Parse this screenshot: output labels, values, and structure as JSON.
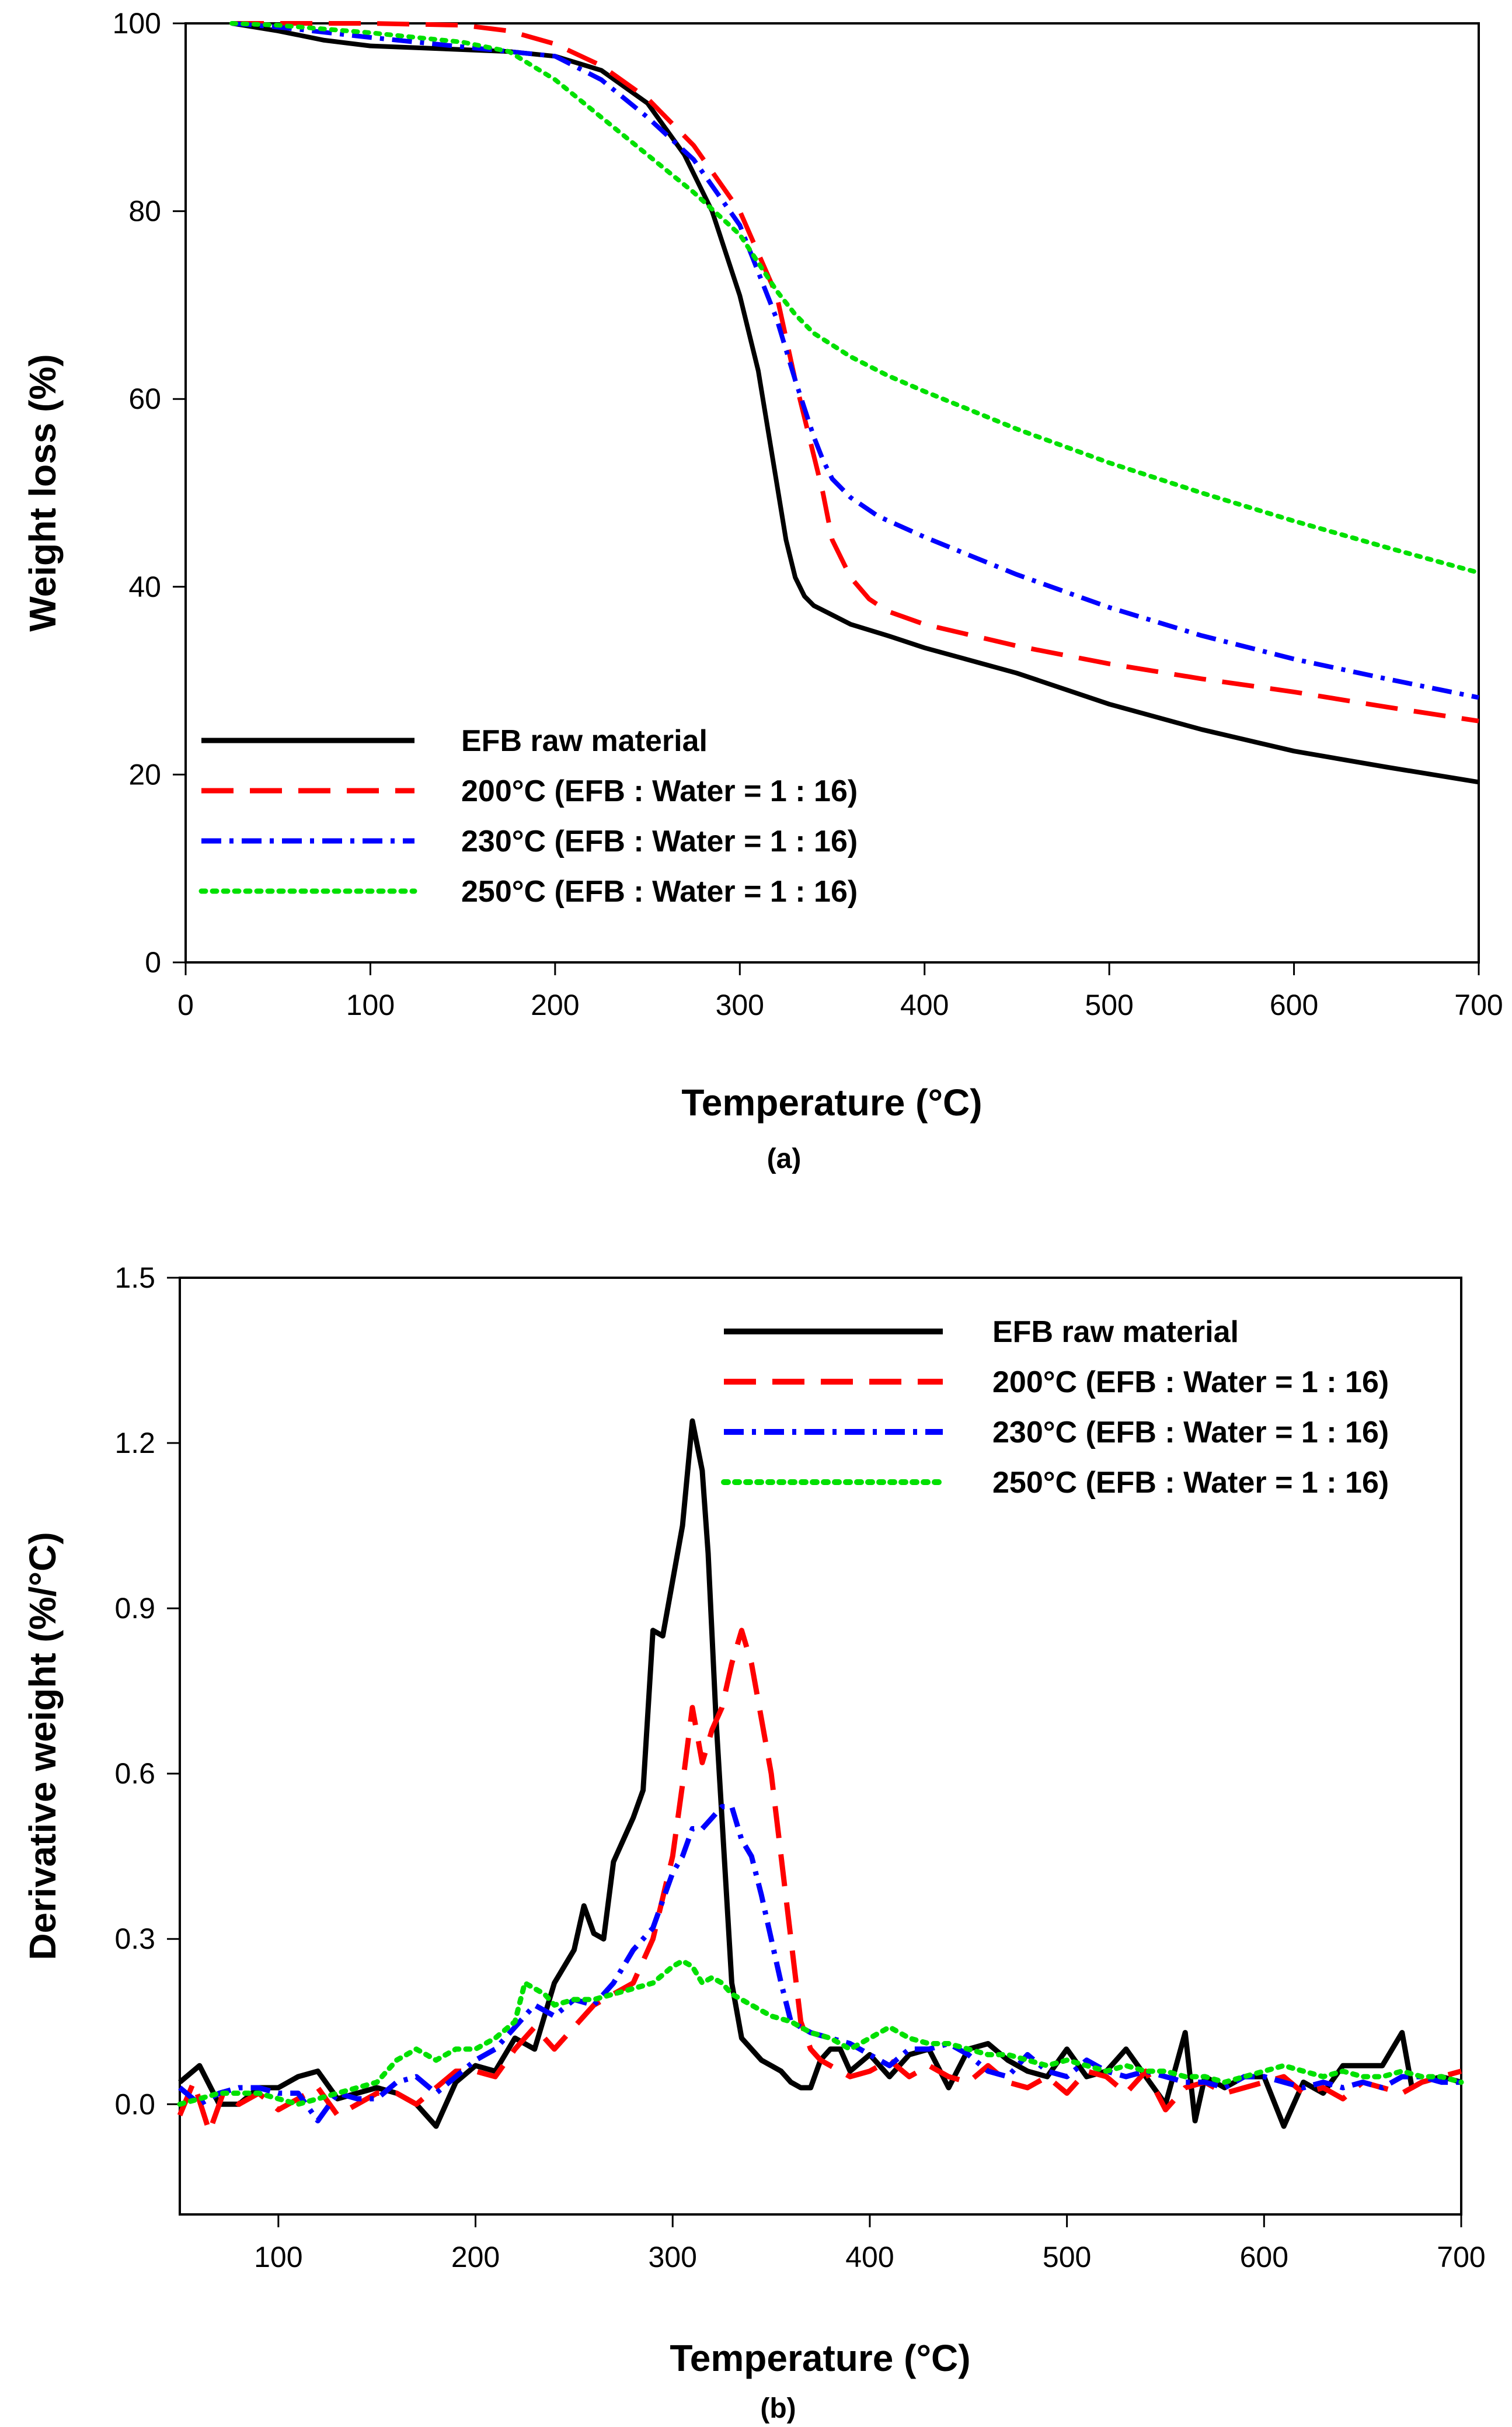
{
  "figure": {
    "panel_a_label": "(a)",
    "panel_b_label": "(b)"
  },
  "chart_data": [
    {
      "type": "line",
      "panel": "(a)",
      "title": "",
      "xlabel": "Temperature (°C)",
      "ylabel": "Weight loss (%)",
      "xlim": [
        0,
        700
      ],
      "ylim": [
        0,
        100
      ],
      "xticks": [
        0,
        100,
        200,
        300,
        400,
        500,
        600,
        700
      ],
      "yticks": [
        0,
        20,
        40,
        60,
        80,
        100
      ],
      "grid": false,
      "legend_position": "bottom-left",
      "series": [
        {
          "name": "EFB raw material",
          "color": "#000000",
          "style": "solid",
          "x": [
            25,
            50,
            75,
            100,
            125,
            150,
            175,
            200,
            225,
            250,
            270,
            285,
            300,
            310,
            320,
            325,
            330,
            335,
            340,
            350,
            360,
            380,
            400,
            450,
            500,
            550,
            600,
            650,
            700
          ],
          "y": [
            100,
            99.2,
            98.2,
            97.6,
            97.4,
            97.2,
            97.0,
            96.5,
            95.0,
            91.5,
            86.0,
            80.0,
            71.0,
            63.0,
            51.0,
            45.0,
            41.0,
            39.0,
            38.0,
            37.0,
            36.0,
            34.8,
            33.5,
            30.8,
            27.5,
            24.8,
            22.5,
            20.8,
            19.2
          ]
        },
        {
          "name": "200°C (EFB : Water = 1 : 16)",
          "color": "#ff0000",
          "style": "dashed",
          "x": [
            25,
            50,
            100,
            150,
            175,
            200,
            225,
            250,
            275,
            300,
            320,
            330,
            340,
            345,
            350,
            360,
            370,
            380,
            400,
            450,
            500,
            550,
            600,
            650,
            700
          ],
          "y": [
            100,
            100,
            100,
            99.8,
            99.2,
            97.8,
            95.5,
            92.0,
            87.0,
            80.0,
            71.0,
            62.0,
            54.0,
            50.0,
            45.0,
            41.0,
            38.7,
            37.4,
            36.0,
            33.7,
            31.8,
            30.2,
            28.8,
            27.2,
            25.7
          ]
        },
        {
          "name": "230°C (EFB : Water = 1 : 16)",
          "color": "#0000ff",
          "style": "dashdot",
          "x": [
            25,
            50,
            100,
            150,
            175,
            200,
            225,
            250,
            275,
            300,
            320,
            330,
            340,
            345,
            350,
            360,
            375,
            400,
            450,
            500,
            550,
            600,
            650,
            700
          ],
          "y": [
            100,
            99.6,
            98.5,
            97.5,
            97.0,
            96.5,
            94.0,
            90.0,
            85.5,
            78.5,
            68.5,
            62.0,
            56.0,
            53.5,
            51.5,
            49.5,
            47.5,
            45.3,
            41.3,
            37.8,
            34.8,
            32.3,
            30.2,
            28.2
          ]
        },
        {
          "name": "250°C (EFB : Water = 1 : 16)",
          "color": "#00e000",
          "style": "dotted",
          "x": [
            25,
            50,
            100,
            150,
            175,
            200,
            225,
            250,
            275,
            300,
            310,
            320,
            330,
            340,
            360,
            380,
            400,
            450,
            500,
            550,
            600,
            650,
            700
          ],
          "y": [
            100,
            99.8,
            99.0,
            98.0,
            97.0,
            94.0,
            90.0,
            86.0,
            82.0,
            77.5,
            74.5,
            71.5,
            69.0,
            67.0,
            64.5,
            62.5,
            60.8,
            56.8,
            53.2,
            50.0,
            47.0,
            44.2,
            41.5
          ]
        }
      ]
    },
    {
      "type": "line",
      "panel": "(b)",
      "title": "",
      "xlabel": "Temperature (°C)",
      "ylabel": "Derivative weight (%/°C)",
      "xlim": [
        50,
        700
      ],
      "ylim": [
        -0.2,
        1.5
      ],
      "xticks": [
        100,
        200,
        300,
        400,
        500,
        600,
        700
      ],
      "yticks": [
        0.0,
        0.3,
        0.6,
        0.9,
        1.2,
        1.5
      ],
      "grid": false,
      "legend_position": "top-right",
      "series": [
        {
          "name": "EFB raw material",
          "color": "#000000",
          "style": "solid",
          "x": [
            50,
            60,
            70,
            80,
            90,
            100,
            110,
            120,
            130,
            140,
            150,
            160,
            170,
            180,
            190,
            200,
            210,
            220,
            230,
            240,
            250,
            255,
            260,
            265,
            270,
            275,
            280,
            285,
            290,
            295,
            300,
            305,
            310,
            315,
            318,
            322,
            327,
            330,
            335,
            340,
            345,
            350,
            355,
            360,
            365,
            370,
            375,
            380,
            385,
            390,
            400,
            410,
            420,
            430,
            440,
            450,
            460,
            470,
            480,
            490,
            500,
            510,
            520,
            530,
            540,
            550,
            560,
            565,
            570,
            580,
            590,
            600,
            610,
            620,
            630,
            640,
            650,
            660,
            670,
            675,
            680,
            690,
            700
          ],
          "y": [
            0.04,
            0.07,
            0.0,
            0.0,
            0.03,
            0.03,
            0.05,
            0.06,
            0.01,
            0.02,
            0.03,
            0.02,
            0.0,
            -0.04,
            0.04,
            0.07,
            0.06,
            0.12,
            0.1,
            0.22,
            0.28,
            0.36,
            0.31,
            0.3,
            0.44,
            0.48,
            0.52,
            0.57,
            0.86,
            0.85,
            0.95,
            1.05,
            1.24,
            1.15,
            1.0,
            0.7,
            0.4,
            0.22,
            0.12,
            0.1,
            0.08,
            0.07,
            0.06,
            0.04,
            0.03,
            0.03,
            0.08,
            0.1,
            0.1,
            0.06,
            0.09,
            0.05,
            0.09,
            0.1,
            0.03,
            0.1,
            0.11,
            0.08,
            0.06,
            0.05,
            0.1,
            0.05,
            0.06,
            0.1,
            0.05,
            0.0,
            0.13,
            -0.03,
            0.05,
            0.03,
            0.05,
            0.05,
            -0.04,
            0.04,
            0.02,
            0.07,
            0.07,
            0.07,
            0.13,
            0.03,
            0.04,
            0.05,
            0.04
          ]
        },
        {
          "name": "200°C (EFB : Water = 1 : 16)",
          "color": "#ff0000",
          "style": "dashed",
          "x": [
            50,
            57,
            65,
            72,
            80,
            90,
            100,
            110,
            120,
            130,
            140,
            150,
            160,
            170,
            180,
            190,
            200,
            210,
            220,
            230,
            240,
            250,
            260,
            270,
            280,
            290,
            300,
            305,
            310,
            315,
            320,
            325,
            330,
            335,
            340,
            345,
            350,
            355,
            360,
            365,
            370,
            375,
            380,
            390,
            400,
            410,
            420,
            430,
            440,
            450,
            460,
            470,
            480,
            490,
            500,
            510,
            520,
            530,
            540,
            550,
            560,
            570,
            580,
            590,
            600,
            610,
            620,
            630,
            640,
            650,
            660,
            670,
            680,
            690,
            700
          ],
          "y": [
            -0.02,
            0.04,
            -0.05,
            0.02,
            0.0,
            0.02,
            -0.01,
            0.01,
            0.03,
            -0.02,
            0.0,
            0.02,
            0.02,
            0.0,
            0.03,
            0.06,
            0.06,
            0.05,
            0.1,
            0.14,
            0.1,
            0.14,
            0.18,
            0.2,
            0.22,
            0.3,
            0.45,
            0.58,
            0.72,
            0.62,
            0.68,
            0.72,
            0.8,
            0.86,
            0.8,
            0.7,
            0.6,
            0.45,
            0.3,
            0.15,
            0.1,
            0.08,
            0.07,
            0.05,
            0.06,
            0.08,
            0.05,
            0.07,
            0.05,
            0.04,
            0.07,
            0.04,
            0.03,
            0.05,
            0.02,
            0.06,
            0.05,
            0.02,
            0.06,
            -0.01,
            0.03,
            0.04,
            0.02,
            0.03,
            0.04,
            0.05,
            0.02,
            0.03,
            0.01,
            0.04,
            0.03,
            0.02,
            0.04,
            0.05,
            0.06
          ]
        },
        {
          "name": "230°C (EFB : Water = 1 : 16)",
          "color": "#0000ff",
          "style": "dashdot",
          "x": [
            50,
            60,
            70,
            80,
            90,
            100,
            110,
            120,
            130,
            140,
            150,
            160,
            170,
            180,
            190,
            200,
            210,
            220,
            230,
            240,
            250,
            260,
            270,
            280,
            290,
            300,
            305,
            310,
            315,
            320,
            325,
            330,
            335,
            340,
            345,
            350,
            355,
            360,
            370,
            380,
            390,
            400,
            410,
            420,
            430,
            440,
            450,
            460,
            470,
            480,
            490,
            500,
            510,
            520,
            530,
            540,
            550,
            560,
            570,
            580,
            590,
            600,
            610,
            620,
            630,
            640,
            650,
            660,
            670,
            680,
            690,
            700
          ],
          "y": [
            0.03,
            0.0,
            0.02,
            0.03,
            0.03,
            0.02,
            0.02,
            -0.03,
            0.02,
            0.01,
            0.01,
            0.04,
            0.05,
            0.02,
            0.05,
            0.08,
            0.1,
            0.14,
            0.18,
            0.16,
            0.19,
            0.18,
            0.22,
            0.28,
            0.32,
            0.42,
            0.45,
            0.5,
            0.5,
            0.52,
            0.54,
            0.54,
            0.48,
            0.45,
            0.38,
            0.3,
            0.22,
            0.15,
            0.13,
            0.12,
            0.11,
            0.09,
            0.07,
            0.1,
            0.1,
            0.11,
            0.09,
            0.06,
            0.05,
            0.09,
            0.06,
            0.05,
            0.08,
            0.06,
            0.05,
            0.06,
            0.05,
            0.04,
            0.04,
            0.03,
            0.05,
            0.05,
            0.04,
            0.03,
            0.04,
            0.03,
            0.04,
            0.03,
            0.05,
            0.05,
            0.04,
            0.04
          ]
        },
        {
          "name": "250°C (EFB : Water = 1 : 16)",
          "color": "#00e000",
          "style": "dotted",
          "x": [
            50,
            60,
            70,
            80,
            90,
            100,
            110,
            120,
            130,
            140,
            150,
            160,
            170,
            180,
            190,
            200,
            210,
            220,
            225,
            230,
            235,
            240,
            250,
            260,
            270,
            280,
            290,
            300,
            305,
            310,
            315,
            320,
            325,
            330,
            340,
            350,
            360,
            370,
            380,
            390,
            400,
            410,
            420,
            430,
            440,
            450,
            460,
            470,
            480,
            490,
            500,
            510,
            520,
            530,
            540,
            550,
            560,
            570,
            580,
            590,
            600,
            610,
            620,
            630,
            640,
            650,
            660,
            670,
            680,
            690,
            700
          ],
          "y": [
            0.0,
            0.01,
            0.02,
            0.02,
            0.02,
            0.01,
            0.0,
            0.01,
            0.02,
            0.03,
            0.04,
            0.08,
            0.1,
            0.08,
            0.1,
            0.1,
            0.12,
            0.15,
            0.22,
            0.21,
            0.2,
            0.18,
            0.19,
            0.19,
            0.2,
            0.21,
            0.22,
            0.25,
            0.26,
            0.25,
            0.22,
            0.23,
            0.22,
            0.2,
            0.18,
            0.16,
            0.15,
            0.13,
            0.12,
            0.1,
            0.12,
            0.14,
            0.12,
            0.11,
            0.11,
            0.1,
            0.09,
            0.09,
            0.08,
            0.07,
            0.08,
            0.07,
            0.06,
            0.07,
            0.06,
            0.06,
            0.05,
            0.05,
            0.04,
            0.05,
            0.06,
            0.07,
            0.06,
            0.05,
            0.06,
            0.05,
            0.05,
            0.06,
            0.05,
            0.05,
            0.04
          ]
        }
      ]
    }
  ]
}
